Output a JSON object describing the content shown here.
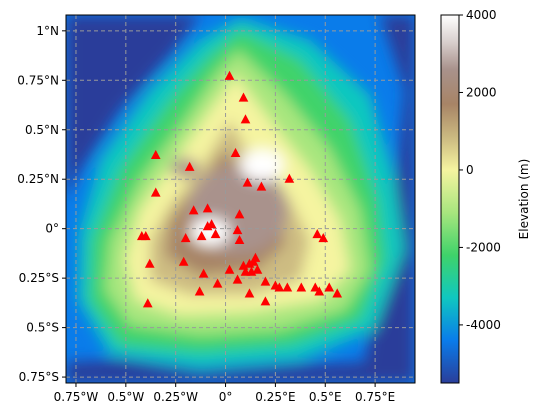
{
  "chart_data": {
    "type": "heatmap",
    "title": "",
    "x_ticks": [
      {
        "value": -0.75,
        "label": "0.75°W"
      },
      {
        "value": -0.5,
        "label": "0.5°W"
      },
      {
        "value": -0.25,
        "label": "0.25°W"
      },
      {
        "value": 0,
        "label": "0°"
      },
      {
        "value": 0.25,
        "label": "0.25°E"
      },
      {
        "value": 0.5,
        "label": "0.5°E"
      },
      {
        "value": 0.75,
        "label": "0.75°E"
      }
    ],
    "y_ticks": [
      {
        "value": 1,
        "label": "1°N"
      },
      {
        "value": 0.75,
        "label": "0.75°N"
      },
      {
        "value": 0.5,
        "label": "0.5°N"
      },
      {
        "value": 0.25,
        "label": "0.25°N"
      },
      {
        "value": 0,
        "label": "0°"
      },
      {
        "value": -0.25,
        "label": "0.25°S"
      },
      {
        "value": -0.5,
        "label": "0.5°S"
      },
      {
        "value": -0.75,
        "label": "0.75°S"
      }
    ],
    "xlim": [
      -0.8,
      0.95
    ],
    "ylim": [
      -0.78,
      1.08
    ],
    "grid": true,
    "colorbar": {
      "label": "Elevation (m)",
      "range": [
        -5500,
        4000
      ],
      "ticks": [
        4000,
        2000,
        0,
        -2000,
        -4000
      ],
      "colormap_stops": [
        {
          "value": -5500,
          "color": "#2a3e9a"
        },
        {
          "value": -4400,
          "color": "#0a7cea"
        },
        {
          "value": -3300,
          "color": "#10c7c0"
        },
        {
          "value": -2200,
          "color": "#3fd36a"
        },
        {
          "value": -1100,
          "color": "#a8e67e"
        },
        {
          "value": 0,
          "color": "#f5f4a0"
        },
        {
          "value": 800,
          "color": "#cdbc82"
        },
        {
          "value": 1700,
          "color": "#a78466"
        },
        {
          "value": 2600,
          "color": "#a9928c"
        },
        {
          "value": 3300,
          "color": "#d8cfcd"
        },
        {
          "value": 4000,
          "color": "#ffffff"
        }
      ]
    },
    "markers": {
      "color": "#ff0000",
      "shape": "triangle",
      "points": [
        [
          0.02,
          0.77
        ],
        [
          0.09,
          0.66
        ],
        [
          0.1,
          0.55
        ],
        [
          0.05,
          0.38
        ],
        [
          -0.35,
          0.37
        ],
        [
          -0.18,
          0.31
        ],
        [
          0.32,
          0.25
        ],
        [
          0.11,
          0.23
        ],
        [
          0.18,
          0.21
        ],
        [
          -0.35,
          0.18
        ],
        [
          -0.16,
          0.09
        ],
        [
          -0.09,
          0.1
        ],
        [
          0.07,
          0.07
        ],
        [
          -0.07,
          0.02
        ],
        [
          -0.09,
          0.01
        ],
        [
          0.06,
          -0.01
        ],
        [
          -0.05,
          -0.03
        ],
        [
          -0.12,
          -0.04
        ],
        [
          0.07,
          -0.06
        ],
        [
          -0.2,
          -0.05
        ],
        [
          -0.42,
          -0.04
        ],
        [
          -0.38,
          -0.18
        ],
        [
          -0.21,
          -0.17
        ],
        [
          -0.11,
          -0.23
        ],
        [
          0.02,
          -0.21
        ],
        [
          0.09,
          -0.19
        ],
        [
          0.12,
          -0.18
        ],
        [
          0.14,
          -0.17
        ],
        [
          0.15,
          -0.15
        ],
        [
          0.1,
          -0.22
        ],
        [
          0.13,
          -0.22
        ],
        [
          0.16,
          -0.21
        ],
        [
          0.06,
          -0.26
        ],
        [
          0.2,
          -0.27
        ],
        [
          0.25,
          -0.29
        ],
        [
          0.27,
          -0.3
        ],
        [
          0.31,
          -0.3
        ],
        [
          0.38,
          -0.3
        ],
        [
          0.45,
          -0.3
        ],
        [
          0.47,
          -0.32
        ],
        [
          0.52,
          -0.3
        ],
        [
          0.56,
          -0.33
        ],
        [
          -0.04,
          -0.28
        ],
        [
          -0.13,
          -0.32
        ],
        [
          0.12,
          -0.33
        ],
        [
          0.2,
          -0.37
        ],
        [
          -0.39,
          -0.38
        ],
        [
          0.46,
          -0.03
        ],
        [
          0.49,
          -0.05
        ],
        [
          -0.4,
          -0.04
        ]
      ]
    }
  }
}
